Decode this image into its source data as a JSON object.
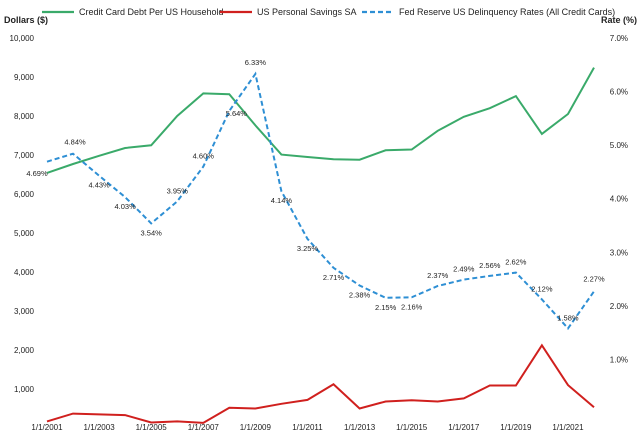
{
  "chart_data": {
    "type": "line",
    "y_left_label": "Dollars ($)",
    "y_right_label": "Rate (%)",
    "y_left_range": [
      0,
      10000
    ],
    "y_right_range": [
      0,
      7
    ],
    "y_left_ticks": [
      "1,000",
      "2,000",
      "3,000",
      "4,000",
      "5,000",
      "6,000",
      "7,000",
      "8,000",
      "9,000",
      "10,000"
    ],
    "y_left_tick_values": [
      1000,
      2000,
      3000,
      4000,
      5000,
      6000,
      7000,
      8000,
      9000,
      10000
    ],
    "y_right_ticks": [
      "1.0%",
      "2.0%",
      "3.0%",
      "4.0%",
      "5.0%",
      "6.0%",
      "7.0%"
    ],
    "y_right_tick_values": [
      1,
      2,
      3,
      4,
      5,
      6,
      7
    ],
    "x_tick_labels": [
      "1/1/2001",
      "1/1/2003",
      "1/1/2005",
      "1/1/2007",
      "1/1/2009",
      "1/1/2011",
      "1/1/2013",
      "1/1/2015",
      "1/1/2017",
      "1/1/2019",
      "1/1/2021"
    ],
    "x_tick_years": [
      2001,
      2003,
      2005,
      2007,
      2009,
      2011,
      2013,
      2015,
      2017,
      2019,
      2021
    ],
    "x_range": [
      2001,
      2022
    ],
    "grid": false,
    "legend_position": "top",
    "series": [
      {
        "name": "Credit Card Debt Per US Household",
        "color": "#3aaa6a",
        "axis": "left",
        "style": "solid",
        "x": [
          2001,
          2002,
          2003,
          2004,
          2005,
          2006,
          2007,
          2008,
          2009,
          2010,
          2011,
          2012,
          2013,
          2014,
          2015,
          2016,
          2017,
          2018,
          2019,
          2020,
          2021,
          2022
        ],
        "values": [
          6540,
          6770,
          6980,
          7180,
          7250,
          8000,
          8580,
          8560,
          7760,
          7010,
          6950,
          6890,
          6880,
          7120,
          7140,
          7620,
          7980,
          8200,
          8510,
          7540,
          8050,
          9240
        ]
      },
      {
        "name": "US Personal Savings SA",
        "color": "#d0201e",
        "axis": "left",
        "style": "solid",
        "x": [
          2001,
          2002,
          2003,
          2004,
          2005,
          2006,
          2007,
          2008,
          2009,
          2010,
          2011,
          2012,
          2013,
          2014,
          2015,
          2016,
          2017,
          2018,
          2019,
          2020,
          2021,
          2022
        ],
        "values": [
          170,
          370,
          350,
          330,
          140,
          170,
          130,
          520,
          500,
          620,
          720,
          1120,
          500,
          680,
          710,
          680,
          760,
          1090,
          1090,
          2120,
          1100,
          530
        ]
      },
      {
        "name": "Fed Reserve US Delinquency Rates (All Credit Cards)",
        "color": "#2e8fd4",
        "axis": "right",
        "style": "dashed",
        "x": [
          2001,
          2002,
          2003,
          2004,
          2005,
          2006,
          2007,
          2008,
          2009,
          2010,
          2011,
          2012,
          2013,
          2014,
          2015,
          2016,
          2017,
          2018,
          2019,
          2020,
          2021,
          2022
        ],
        "values": [
          4.69,
          4.84,
          4.43,
          4.03,
          3.54,
          3.95,
          4.6,
          5.64,
          6.33,
          4.14,
          3.25,
          2.71,
          2.38,
          2.15,
          2.16,
          2.37,
          2.49,
          2.56,
          2.62,
          2.12,
          1.58,
          2.27
        ],
        "labels": [
          "4.69%",
          "4.84%",
          "4.43%",
          "4.03%",
          "3.54%",
          "3.95%",
          "4.60%",
          "5.64%",
          "6.33%",
          "4.14%",
          "3.25%",
          "2.71%",
          "2.38%",
          "2.15%",
          "2.16%",
          "2.37%",
          "2.49%",
          "2.56%",
          "2.62%",
          "2.12%",
          "1.58%",
          "2.27%"
        ]
      }
    ]
  }
}
